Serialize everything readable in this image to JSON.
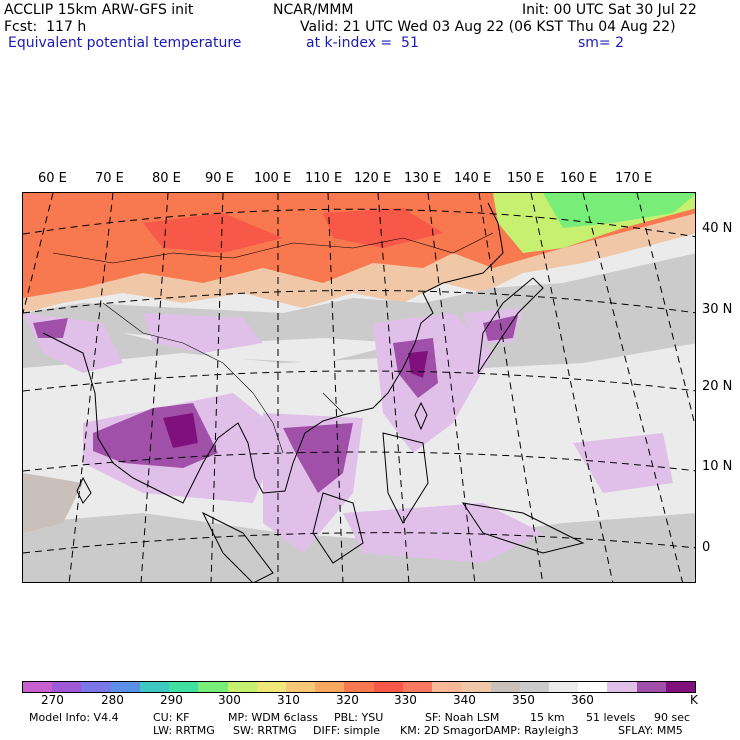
{
  "header": {
    "model_line": "ACCLIP 15km ARW-GFS init",
    "center": "NCAR/MMM",
    "init": "Init: 00 UTC Sat 30 Jul 22",
    "fcst": "Fcst:  117 h",
    "valid": "Valid: 21 UTC Wed 03 Aug 22 (06 KST Thu 04 Aug 22)",
    "field": "Equivalent potential temperature",
    "level": "at k-index =  51",
    "smooth": "sm= 2"
  },
  "map": {
    "lon_labels": [
      "60 E",
      "70 E",
      "80 E",
      "90 E",
      "100 E",
      "110 E",
      "120 E",
      "130 E",
      "140 E",
      "150 E",
      "160 E",
      "170 E"
    ],
    "lat_labels": [
      "40 N",
      "30 N",
      "20 N",
      "10 N",
      "0"
    ]
  },
  "colorbar": {
    "colors": [
      "#c860d0",
      "#a05ad8",
      "#7a78e8",
      "#5a90e8",
      "#3ec8c0",
      "#40e0a0",
      "#78ee78",
      "#c8f070",
      "#f0e878",
      "#f8c878",
      "#f8a860",
      "#f87850",
      "#f85848",
      "#f87860",
      "#f8b898",
      "#f0c8a8",
      "#cac0bb",
      "#cbcbcb",
      "#ebebeb",
      "#ffffff",
      "#e0c0e8",
      "#a050a8",
      "#80107c"
    ],
    "labels": [
      "270",
      "280",
      "290",
      "300",
      "310",
      "320",
      "330",
      "340",
      "350",
      "360"
    ],
    "unit": "K"
  },
  "footer": {
    "line1": [
      "Model Info: V4.4",
      "CU: KF",
      "MP: WDM 6class",
      "PBL: YSU",
      "SF: Noah LSM",
      "15 km",
      "51 levels",
      "90 sec"
    ],
    "line2": [
      "LW: RRTMG",
      "SW: RRTMG",
      "DIFF: simple",
      "KM: 2D Smagor",
      "DAMP: Rayleigh3",
      "SFLAY: MM5"
    ]
  }
}
